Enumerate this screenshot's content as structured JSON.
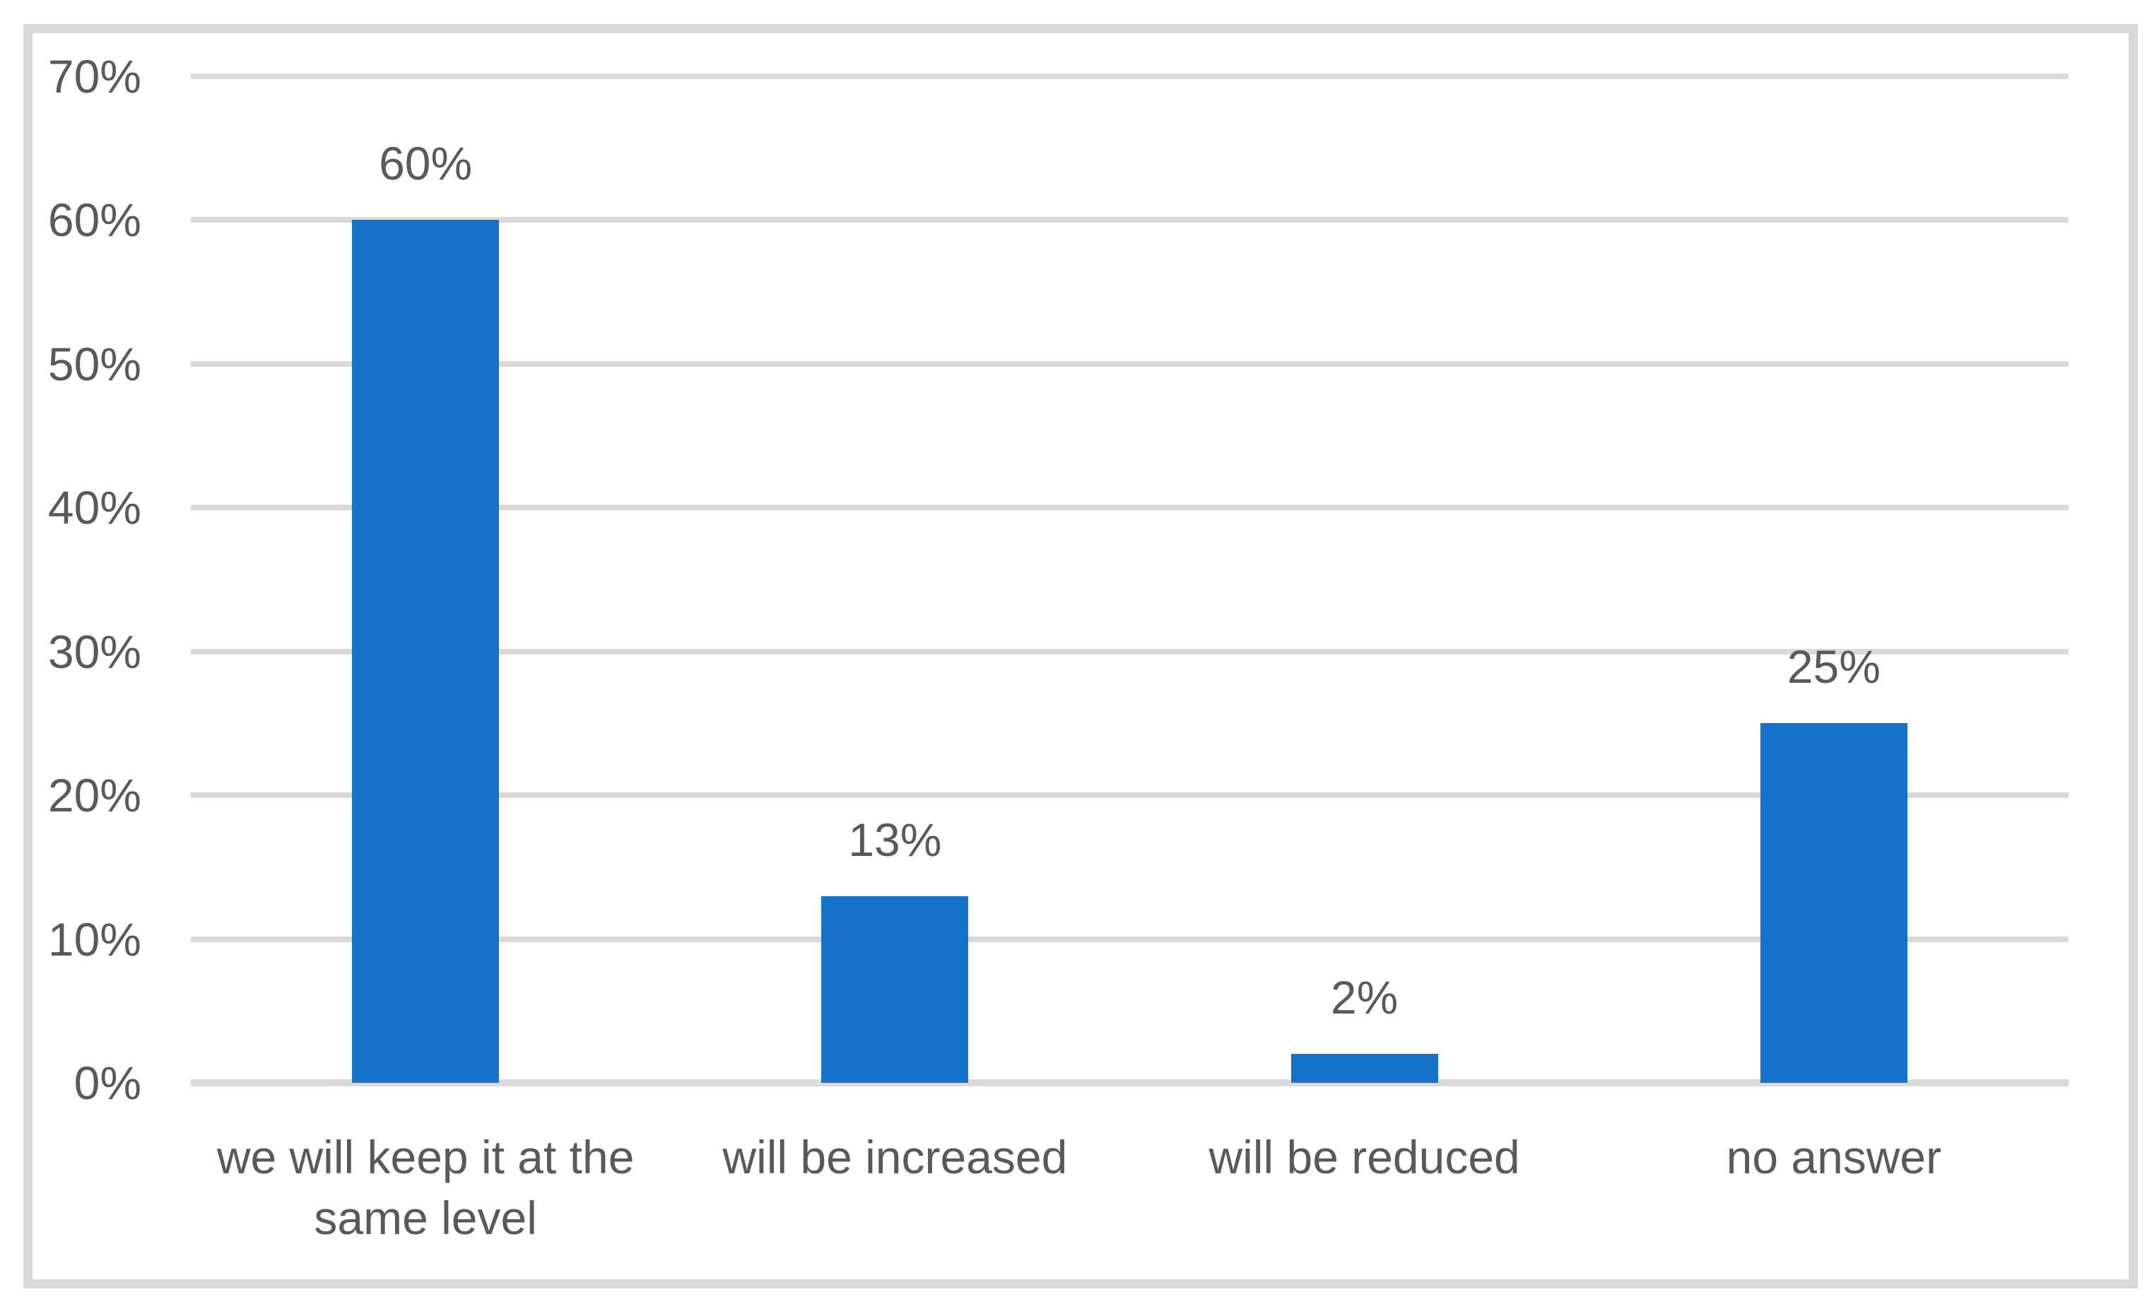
{
  "chart_data": {
    "type": "bar",
    "title": "",
    "xlabel": "",
    "ylabel": "",
    "categories": [
      "we will keep it at the same level",
      "will be increased",
      "will be reduced",
      "no answer"
    ],
    "category_label_lines": [
      [
        "we will keep it at the",
        "same level"
      ],
      [
        "will be increased"
      ],
      [
        "will be reduced"
      ],
      [
        "no answer"
      ]
    ],
    "values": [
      60,
      13,
      2,
      25
    ],
    "value_labels": [
      "60%",
      "13%",
      "2%",
      "25%"
    ],
    "y_ticks": [
      {
        "label": "70%",
        "value": 70
      },
      {
        "label": "60%",
        "value": 60
      },
      {
        "label": "50%",
        "value": 50
      },
      {
        "label": "40%",
        "value": 40
      },
      {
        "label": "30%",
        "value": 30
      },
      {
        "label": "20%",
        "value": 20
      },
      {
        "label": "10%",
        "value": 10
      },
      {
        "label": "0%",
        "value": 0
      }
    ],
    "ylim": [
      0,
      70
    ],
    "grid": "horizontal-on",
    "legend": "none",
    "colors": {
      "bar": "#1773C9",
      "gridline": "#D9D9D9",
      "axis_line": "#D9D9D9",
      "text": "#595959",
      "frame_border": "#D9D9D9",
      "background": "#FFFFFF"
    }
  }
}
